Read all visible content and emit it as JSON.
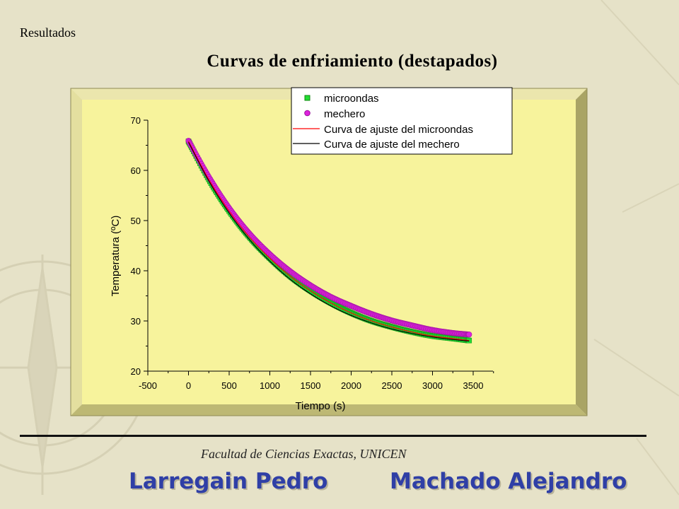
{
  "slide": {
    "section_label": "Resultados",
    "title": "Curvas de enfriamiento (destapados)",
    "footer_institution": "Facultad de Ciencias Exactas, UNICEN",
    "authors": [
      "Larregain Pedro",
      "Machado Alejandro"
    ]
  },
  "colors": {
    "background": "#e6e2c8",
    "plot_bg": "#f7f39c",
    "frame": "#cfc983",
    "microondas": "#22dd33",
    "mechero": "#dd22dd",
    "fit_microondas": "#ff0000",
    "fit_mechero": "#000000",
    "author_text": "#2f3fa6"
  },
  "chart_data": {
    "type": "scatter",
    "xlabel": "Tiempo (s)",
    "ylabel": "Temperatura (ºC)",
    "xlim": [
      -500,
      3700
    ],
    "ylim": [
      20,
      70
    ],
    "xticks": [
      -500,
      0,
      500,
      1000,
      1500,
      2000,
      2500,
      3000,
      3500
    ],
    "yticks": [
      20,
      30,
      40,
      50,
      60,
      70
    ],
    "legend_position": "top-right",
    "series": [
      {
        "name": "microondas",
        "kind": "markers",
        "marker": "square",
        "x": [
          0,
          250,
          500,
          750,
          1000,
          1250,
          1500,
          1750,
          2000,
          2250,
          2500,
          2750,
          3000,
          3250,
          3450
        ],
        "y": [
          65.8,
          58.2,
          51.9,
          46.7,
          42.5,
          38.9,
          36.0,
          33.6,
          31.6,
          30.0,
          28.8,
          27.8,
          27.0,
          26.5,
          26.1
        ]
      },
      {
        "name": "mechero",
        "kind": "markers",
        "marker": "circle",
        "x": [
          0,
          250,
          500,
          750,
          1000,
          1250,
          1500,
          1750,
          2000,
          2250,
          2500,
          2750,
          3000,
          3250,
          3450
        ],
        "y": [
          65.9,
          58.7,
          52.5,
          47.4,
          43.3,
          39.9,
          37.1,
          34.8,
          33.0,
          31.4,
          30.1,
          29.1,
          28.2,
          27.6,
          27.3
        ]
      },
      {
        "name": "Curva de ajuste del microondas",
        "kind": "line",
        "x": [
          0,
          250,
          500,
          750,
          1000,
          1250,
          1500,
          1750,
          2000,
          2250,
          2500,
          2750,
          3000,
          3250,
          3450
        ],
        "y": [
          65.8,
          58.2,
          51.9,
          46.7,
          42.5,
          38.9,
          36.0,
          33.6,
          31.6,
          30.0,
          28.8,
          27.8,
          27.0,
          26.5,
          26.1
        ]
      },
      {
        "name": "Curva de ajuste del mechero",
        "kind": "line",
        "x": [
          0,
          250,
          500,
          750,
          1000,
          1250,
          1500,
          1750,
          2000,
          2250,
          2500,
          2750,
          3000,
          3250,
          3450
        ],
        "y": [
          65.6,
          57.9,
          51.5,
          46.2,
          41.9,
          38.3,
          35.4,
          33.0,
          31.1,
          29.6,
          28.4,
          27.5,
          26.8,
          26.3,
          26.0
        ]
      }
    ]
  }
}
